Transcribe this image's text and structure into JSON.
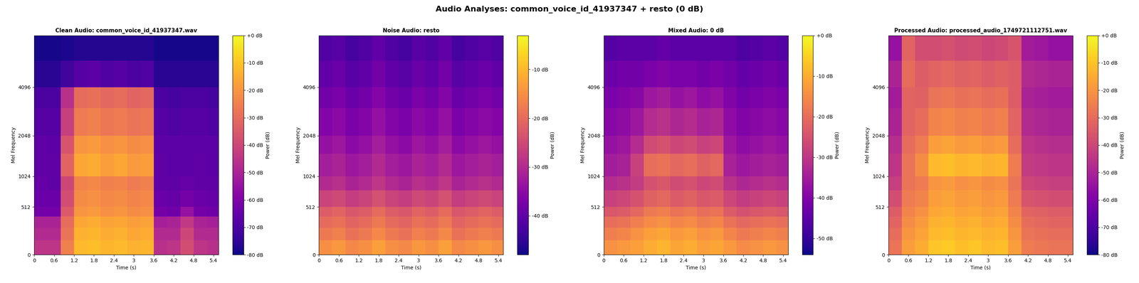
{
  "title": "Audio Analyses: common_voice_id_41937347 + resto (0 dB)",
  "chart_data": [
    {
      "type": "heatmap",
      "title": "Clean Audio: common_voice_id_41937347.wav",
      "color": "plasma",
      "x_label": "Time (s)",
      "y_label": "Mel Frequency",
      "xlim": [
        0,
        5.55
      ],
      "xticks": [
        0,
        0.6,
        1.2,
        1.8,
        2.4,
        3,
        3.6,
        4.2,
        4.8,
        5.4
      ],
      "ylim": [
        0,
        8000
      ],
      "yticks": [
        0,
        512,
        1024,
        2048,
        4096
      ],
      "x": [
        0,
        0.4,
        0.8,
        1.2,
        1.6,
        2.0,
        2.4,
        2.8,
        3.2,
        3.6,
        4.0,
        4.4,
        4.8,
        5.2,
        5.6
      ],
      "y": [
        0,
        128,
        256,
        384,
        512,
        768,
        1024,
        1536,
        2048,
        3072,
        4096,
        5800,
        8000
      ],
      "values": [
        [
          -45,
          -45,
          -25,
          -12,
          -11,
          -13,
          -12,
          -14,
          -13,
          -46,
          -45,
          -38,
          -45,
          -46
        ],
        [
          -48,
          -48,
          -28,
          -14,
          -13,
          -15,
          -14,
          -16,
          -15,
          -48,
          -48,
          -40,
          -48,
          -48
        ],
        [
          -50,
          -50,
          -30,
          -16,
          -15,
          -17,
          -16,
          -18,
          -17,
          -51,
          -50,
          -44,
          -50,
          -51
        ],
        [
          -62,
          -62,
          -35,
          -20,
          -19,
          -21,
          -20,
          -22,
          -21,
          -62,
          -63,
          -55,
          -62,
          -63
        ],
        [
          -64,
          -64,
          -38,
          -22,
          -21,
          -23,
          -22,
          -24,
          -23,
          -64,
          -65,
          -62,
          -64,
          -65
        ],
        [
          -65,
          -66,
          -40,
          -24,
          -23,
          -25,
          -24,
          -26,
          -25,
          -66,
          -66,
          -65,
          -66,
          -66
        ],
        [
          -66,
          -66,
          -32,
          -16,
          -15,
          -18,
          -16,
          -19,
          -18,
          -66,
          -67,
          -67,
          -66,
          -67
        ],
        [
          -66,
          -67,
          -36,
          -20,
          -19,
          -21,
          -20,
          -22,
          -21,
          -67,
          -67,
          -67,
          -67,
          -67
        ],
        [
          -68,
          -68,
          -42,
          -26,
          -25,
          -27,
          -26,
          -28,
          -27,
          -68,
          -69,
          -68,
          -68,
          -69
        ],
        [
          -70,
          -70,
          -46,
          -30,
          -29,
          -31,
          -30,
          -32,
          -31,
          -70,
          -71,
          -70,
          -70,
          -71
        ],
        [
          -76,
          -76,
          -72,
          -68,
          -67,
          -69,
          -68,
          -70,
          -69,
          -76,
          -76,
          -76,
          -76,
          -76
        ],
        [
          -79,
          -79,
          -78,
          -77,
          -77,
          -77,
          -77,
          -77,
          -77,
          -79,
          -79,
          -79,
          -79,
          -79
        ]
      ],
      "colorbar": {
        "label": "Power (dB)",
        "lim": [
          -80,
          0
        ],
        "ticks": [
          {
            "value": 0,
            "label": "+0 dB"
          },
          {
            "value": -10,
            "label": "-10 dB"
          },
          {
            "value": -20,
            "label": "-20 dB"
          },
          {
            "value": -30,
            "label": "-30 dB"
          },
          {
            "value": -40,
            "label": "-40 dB"
          },
          {
            "value": -50,
            "label": "-50 dB"
          },
          {
            "value": -60,
            "label": "-60 dB"
          },
          {
            "value": -70,
            "label": "-70 dB"
          },
          {
            "value": -80,
            "label": "-80 dB"
          }
        ]
      }
    },
    {
      "type": "heatmap",
      "title": "Noise Audio: resto",
      "color": "plasma",
      "x_label": "Time (s)",
      "y_label": "Mel Frequency",
      "xlim": [
        0,
        5.55
      ],
      "xticks": [
        0,
        0.6,
        1.2,
        1.8,
        2.4,
        3,
        3.6,
        4.2,
        4.8,
        5.4
      ],
      "ylim": [
        0,
        8000
      ],
      "yticks": [
        0,
        512,
        1024,
        2048,
        4096
      ],
      "x": [
        0,
        0.4,
        0.8,
        1.2,
        1.6,
        2.0,
        2.4,
        2.8,
        3.2,
        3.6,
        4.0,
        4.4,
        4.8,
        5.2,
        5.6
      ],
      "y": [
        0,
        128,
        256,
        384,
        512,
        768,
        1024,
        1536,
        2048,
        3072,
        4096,
        5800,
        8000
      ],
      "values": [
        [
          -15,
          -14,
          -16,
          -15,
          -13,
          -15,
          -16,
          -14,
          -15,
          -13,
          -16,
          -15,
          -14,
          -15
        ],
        [
          -18,
          -17,
          -19,
          -18,
          -16,
          -18,
          -19,
          -17,
          -18,
          -16,
          -19,
          -18,
          -17,
          -18
        ],
        [
          -20,
          -19,
          -21,
          -20,
          -18,
          -20,
          -21,
          -19,
          -20,
          -18,
          -21,
          -20,
          -19,
          -20
        ],
        [
          -22,
          -21,
          -23,
          -22,
          -20,
          -22,
          -23,
          -21,
          -22,
          -20,
          -23,
          -22,
          -21,
          -22
        ],
        [
          -26,
          -25,
          -27,
          -26,
          -24,
          -26,
          -27,
          -25,
          -26,
          -24,
          -27,
          -26,
          -25,
          -26
        ],
        [
          -30,
          -29,
          -31,
          -30,
          -28,
          -30,
          -31,
          -29,
          -30,
          -28,
          -31,
          -30,
          -29,
          -30
        ],
        [
          -32,
          -31,
          -33,
          -32,
          -30,
          -32,
          -33,
          -31,
          -32,
          -30,
          -33,
          -32,
          -31,
          -32
        ],
        [
          -34,
          -33,
          -35,
          -34,
          -32,
          -34,
          -35,
          -33,
          -34,
          -32,
          -35,
          -34,
          -33,
          -34
        ],
        [
          -36,
          -35,
          -37,
          -36,
          -34,
          -36,
          -37,
          -35,
          -36,
          -34,
          -37,
          -36,
          -35,
          -36
        ],
        [
          -38,
          -37,
          -39,
          -38,
          -36,
          -38,
          -39,
          -37,
          -38,
          -36,
          -39,
          -38,
          -37,
          -38
        ],
        [
          -40,
          -39,
          -41,
          -40,
          -38,
          -40,
          -41,
          -39,
          -40,
          -38,
          -41,
          -40,
          -39,
          -40
        ],
        [
          -42,
          -41,
          -43,
          -42,
          -40,
          -42,
          -43,
          -41,
          -42,
          -40,
          -43,
          -42,
          -41,
          -42
        ]
      ],
      "colorbar": {
        "label": "Power (dB)",
        "lim": [
          -48,
          -3
        ],
        "ticks": [
          {
            "value": -10,
            "label": "-10 dB"
          },
          {
            "value": -20,
            "label": "-20 dB"
          },
          {
            "value": -30,
            "label": "-30 dB"
          },
          {
            "value": -40,
            "label": "-40 dB"
          }
        ]
      }
    },
    {
      "type": "heatmap",
      "title": "Mixed Audio: 0 dB",
      "color": "plasma",
      "x_label": "Time (s)",
      "y_label": "Mel Frequency",
      "xlim": [
        0,
        5.55
      ],
      "xticks": [
        0,
        0.6,
        1.2,
        1.8,
        2.4,
        3,
        3.6,
        4.2,
        4.8,
        5.4
      ],
      "ylim": [
        0,
        8000
      ],
      "yticks": [
        0,
        512,
        1024,
        2048,
        4096
      ],
      "x": [
        0,
        0.4,
        0.8,
        1.2,
        1.6,
        2.0,
        2.4,
        2.8,
        3.2,
        3.6,
        4.0,
        4.4,
        4.8,
        5.2,
        5.6
      ],
      "y": [
        0,
        128,
        256,
        384,
        512,
        768,
        1024,
        1536,
        2048,
        3072,
        4096,
        5800,
        8000
      ],
      "values": [
        [
          -14,
          -13,
          -12,
          -10,
          -9,
          -11,
          -10,
          -12,
          -11,
          -13,
          -15,
          -14,
          -13,
          -14
        ],
        [
          -17,
          -16,
          -14,
          -12,
          -11,
          -13,
          -12,
          -14,
          -13,
          -16,
          -18,
          -17,
          -16,
          -17
        ],
        [
          -20,
          -19,
          -17,
          -15,
          -14,
          -16,
          -15,
          -17,
          -16,
          -19,
          -21,
          -20,
          -19,
          -20
        ],
        [
          -24,
          -23,
          -21,
          -18,
          -17,
          -19,
          -18,
          -20,
          -19,
          -23,
          -25,
          -24,
          -23,
          -24
        ],
        [
          -28,
          -27,
          -25,
          -22,
          -21,
          -23,
          -22,
          -24,
          -23,
          -27,
          -29,
          -28,
          -27,
          -28
        ],
        [
          -32,
          -31,
          -29,
          -25,
          -24,
          -26,
          -25,
          -27,
          -26,
          -31,
          -33,
          -32,
          -31,
          -32
        ],
        [
          -35,
          -34,
          -28,
          -20,
          -19,
          -21,
          -20,
          -22,
          -21,
          -34,
          -36,
          -35,
          -34,
          -35
        ],
        [
          -37,
          -36,
          -32,
          -26,
          -25,
          -27,
          -26,
          -28,
          -27,
          -36,
          -38,
          -37,
          -36,
          -37
        ],
        [
          -39,
          -38,
          -36,
          -32,
          -31,
          -33,
          -32,
          -34,
          -33,
          -38,
          -40,
          -39,
          -38,
          -39
        ],
        [
          -41,
          -40,
          -39,
          -36,
          -35,
          -37,
          -36,
          -38,
          -37,
          -40,
          -42,
          -41,
          -40,
          -41
        ],
        [
          -43,
          -42,
          -42,
          -41,
          -40,
          -41,
          -41,
          -42,
          -41,
          -42,
          -44,
          -43,
          -42,
          -43
        ],
        [
          -46,
          -45,
          -45,
          -45,
          -44,
          -45,
          -45,
          -45,
          -45,
          -45,
          -47,
          -46,
          -45,
          -46
        ]
      ],
      "colorbar": {
        "label": "Power (dB)",
        "lim": [
          -54,
          0
        ],
        "ticks": [
          {
            "value": 0,
            "label": "+0 dB"
          },
          {
            "value": -10,
            "label": "-10 dB"
          },
          {
            "value": -20,
            "label": "-20 dB"
          },
          {
            "value": -30,
            "label": "-30 dB"
          },
          {
            "value": -40,
            "label": "-40 dB"
          },
          {
            "value": -50,
            "label": "-50 dB"
          }
        ]
      }
    },
    {
      "type": "heatmap",
      "title": "Processed Audio: processed_audio_1749721112751.wav",
      "color": "plasma",
      "x_label": "Time (s)",
      "y_label": "Mel Frequency",
      "xlim": [
        0,
        5.55
      ],
      "xticks": [
        0,
        0.6,
        1.2,
        1.8,
        2.4,
        3,
        3.6,
        4.2,
        4.8,
        5.4
      ],
      "ylim": [
        0,
        8000
      ],
      "yticks": [
        0,
        512,
        1024,
        2048,
        4096
      ],
      "x": [
        0,
        0.4,
        0.8,
        1.2,
        1.6,
        2.0,
        2.4,
        2.8,
        3.2,
        3.6,
        4.0,
        4.4,
        4.8,
        5.2,
        5.6
      ],
      "y": [
        0,
        128,
        256,
        384,
        512,
        768,
        1024,
        1536,
        2048,
        3072,
        4096,
        5800,
        8000
      ],
      "values": [
        [
          -28,
          -18,
          -15,
          -10,
          -9,
          -11,
          -10,
          -12,
          -11,
          -18,
          -26,
          -27,
          -28,
          -28
        ],
        [
          -30,
          -20,
          -17,
          -12,
          -11,
          -13,
          -12,
          -14,
          -13,
          -20,
          -28,
          -29,
          -30,
          -30
        ],
        [
          -32,
          -22,
          -19,
          -14,
          -13,
          -15,
          -14,
          -16,
          -15,
          -22,
          -30,
          -31,
          -32,
          -32
        ],
        [
          -34,
          -24,
          -21,
          -16,
          -15,
          -17,
          -16,
          -18,
          -17,
          -24,
          -32,
          -33,
          -34,
          -34
        ],
        [
          -38,
          -26,
          -24,
          -18,
          -17,
          -19,
          -18,
          -20,
          -19,
          -26,
          -36,
          -37,
          -38,
          -38
        ],
        [
          -42,
          -28,
          -26,
          -20,
          -19,
          -21,
          -20,
          -22,
          -21,
          -28,
          -40,
          -41,
          -42,
          -42
        ],
        [
          -45,
          -28,
          -22,
          -12,
          -11,
          -13,
          -12,
          -14,
          -13,
          -26,
          -43,
          -44,
          -45,
          -45
        ],
        [
          -47,
          -30,
          -26,
          -18,
          -17,
          -19,
          -18,
          -20,
          -19,
          -30,
          -45,
          -46,
          -47,
          -47
        ],
        [
          -50,
          -32,
          -30,
          -24,
          -23,
          -25,
          -24,
          -26,
          -25,
          -32,
          -48,
          -49,
          -50,
          -50
        ],
        [
          -52,
          -32,
          -33,
          -28,
          -27,
          -29,
          -28,
          -30,
          -29,
          -34,
          -50,
          -51,
          -52,
          -52
        ],
        [
          -50,
          -30,
          -34,
          -32,
          -31,
          -33,
          -32,
          -34,
          -33,
          -34,
          -48,
          -49,
          -50,
          -50
        ],
        [
          -55,
          -32,
          -38,
          -38,
          -37,
          -39,
          -38,
          -40,
          -39,
          -36,
          -52,
          -53,
          -55,
          -55
        ]
      ],
      "colorbar": {
        "label": "Power (dB)",
        "lim": [
          -80,
          0
        ],
        "ticks": [
          {
            "value": 0,
            "label": "+0 dB"
          },
          {
            "value": -10,
            "label": "-10 dB"
          },
          {
            "value": -20,
            "label": "-20 dB"
          },
          {
            "value": -30,
            "label": "-30 dB"
          },
          {
            "value": -40,
            "label": "-40 dB"
          },
          {
            "value": -50,
            "label": "-50 dB"
          },
          {
            "value": -60,
            "label": "-60 dB"
          },
          {
            "value": -70,
            "label": "-70 dB"
          },
          {
            "value": -80,
            "label": "-80 dB"
          }
        ]
      }
    }
  ]
}
